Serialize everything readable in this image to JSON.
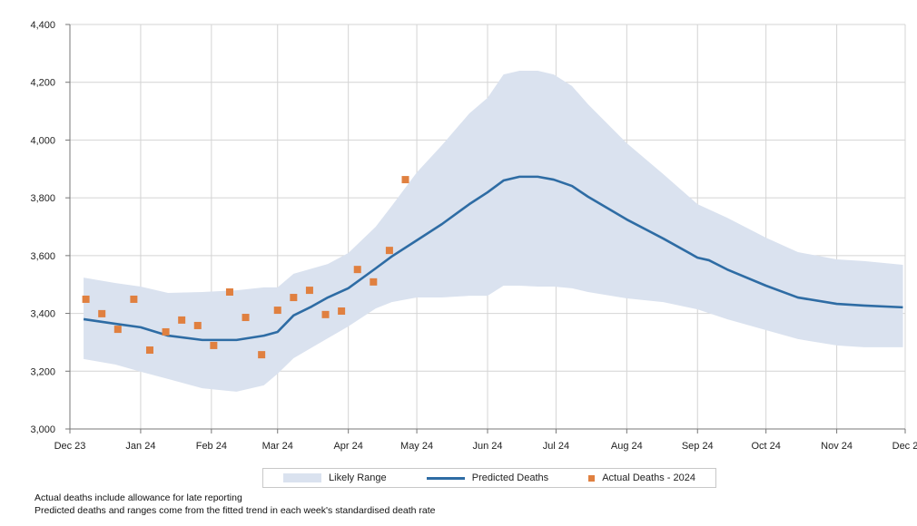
{
  "chart_data": {
    "type": "line",
    "title": "",
    "xlabel": "",
    "ylabel": "",
    "ylim": [
      3000,
      4400
    ],
    "yticks": [
      3000,
      3200,
      3400,
      3600,
      3800,
      4000,
      4200,
      4400
    ],
    "ytick_labels": [
      "3,000",
      "3,200",
      "3,400",
      "3,600",
      "3,800",
      "4,000",
      "4,200",
      "4,400"
    ],
    "xlim": [
      "2023-12-01",
      "2024-12-01"
    ],
    "xticks": [
      "2023-12-01",
      "2024-01-01",
      "2024-02-01",
      "2024-03-01",
      "2024-04-01",
      "2024-05-01",
      "2024-06-01",
      "2024-07-01",
      "2024-08-01",
      "2024-09-01",
      "2024-10-01",
      "2024-11-01",
      "2024-12-01"
    ],
    "xtick_labels": [
      "Dec 23",
      "Jan 24",
      "Feb 24",
      "Mar 24",
      "Apr 24",
      "May 24",
      "Jun 24",
      "Jul 24",
      "Aug 24",
      "Sep 24",
      "Oct 24",
      "Nov 24",
      "Dec 2"
    ],
    "grid": true,
    "legend_placement": "bottom",
    "colors": {
      "band": "#dae2ef",
      "line": "#2e6ca4",
      "points": "#e08040",
      "grid": "#d4d4d4"
    },
    "series": [
      {
        "name": "Likely Range",
        "type": "area",
        "x": [
          "2023-12-07",
          "2023-12-21",
          "2024-01-01",
          "2024-01-13",
          "2024-01-28",
          "2024-02-12",
          "2024-02-24",
          "2024-03-01",
          "2024-03-08",
          "2024-03-23",
          "2024-04-01",
          "2024-04-13",
          "2024-04-20",
          "2024-05-01",
          "2024-05-12",
          "2024-05-24",
          "2024-06-01",
          "2024-06-08",
          "2024-06-15",
          "2024-06-23",
          "2024-06-30",
          "2024-07-08",
          "2024-07-15",
          "2024-08-01",
          "2024-08-17",
          "2024-09-01",
          "2024-09-14",
          "2024-10-01",
          "2024-10-15",
          "2024-11-01",
          "2024-11-13",
          "2024-11-30"
        ],
        "upper": [
          3524,
          3505,
          3493,
          3471,
          3474,
          3480,
          3490,
          3490,
          3537,
          3571,
          3609,
          3700,
          3772,
          3888,
          3982,
          4092,
          4146,
          4227,
          4240,
          4240,
          4227,
          4187,
          4124,
          3989,
          3882,
          3778,
          3731,
          3662,
          3612,
          3587,
          3581,
          3568
        ],
        "lower": [
          3242,
          3223,
          3198,
          3173,
          3141,
          3129,
          3151,
          3191,
          3245,
          3314,
          3355,
          3417,
          3439,
          3455,
          3455,
          3461,
          3461,
          3496,
          3496,
          3493,
          3493,
          3487,
          3474,
          3452,
          3439,
          3414,
          3380,
          3342,
          3311,
          3289,
          3283,
          3283
        ]
      },
      {
        "name": "Predicted Deaths",
        "type": "line",
        "x": [
          "2023-12-07",
          "2023-12-21",
          "2024-01-01",
          "2024-01-13",
          "2024-01-28",
          "2024-02-12",
          "2024-02-24",
          "2024-03-01",
          "2024-03-08",
          "2024-03-16",
          "2024-03-23",
          "2024-04-01",
          "2024-04-13",
          "2024-04-20",
          "2024-05-01",
          "2024-05-12",
          "2024-05-24",
          "2024-06-01",
          "2024-06-08",
          "2024-06-15",
          "2024-06-23",
          "2024-06-30",
          "2024-07-08",
          "2024-07-15",
          "2024-08-01",
          "2024-08-17",
          "2024-09-01",
          "2024-09-06",
          "2024-09-14",
          "2024-10-01",
          "2024-10-15",
          "2024-11-01",
          "2024-11-13",
          "2024-11-30"
        ],
        "values": [
          3380,
          3364,
          3352,
          3323,
          3308,
          3308,
          3323,
          3336,
          3393,
          3424,
          3455,
          3487,
          3556,
          3597,
          3653,
          3709,
          3778,
          3819,
          3860,
          3873,
          3873,
          3863,
          3841,
          3804,
          3725,
          3659,
          3593,
          3584,
          3552,
          3496,
          3455,
          3433,
          3427,
          3421
        ]
      },
      {
        "name": "Actual Deaths - 2024",
        "type": "scatter",
        "x": [
          "2023-12-08",
          "2023-12-15",
          "2023-12-22",
          "2023-12-29",
          "2024-01-05",
          "2024-01-12",
          "2024-01-19",
          "2024-01-26",
          "2024-02-02",
          "2024-02-09",
          "2024-02-16",
          "2024-02-23",
          "2024-03-01",
          "2024-03-08",
          "2024-03-15",
          "2024-03-22",
          "2024-03-29",
          "2024-04-05",
          "2024-04-12",
          "2024-04-19",
          "2024-04-26"
        ],
        "values": [
          3449,
          3399,
          3345,
          3449,
          3273,
          3336,
          3377,
          3358,
          3289,
          3474,
          3386,
          3257,
          3411,
          3455,
          3480,
          3396,
          3408,
          3552,
          3509,
          3618,
          3863
        ]
      }
    ]
  },
  "notes": [
    "Actual deaths include allowance for late reporting",
    "Predicted deaths and ranges come from the fitted trend in each week's standardised death rate"
  ]
}
